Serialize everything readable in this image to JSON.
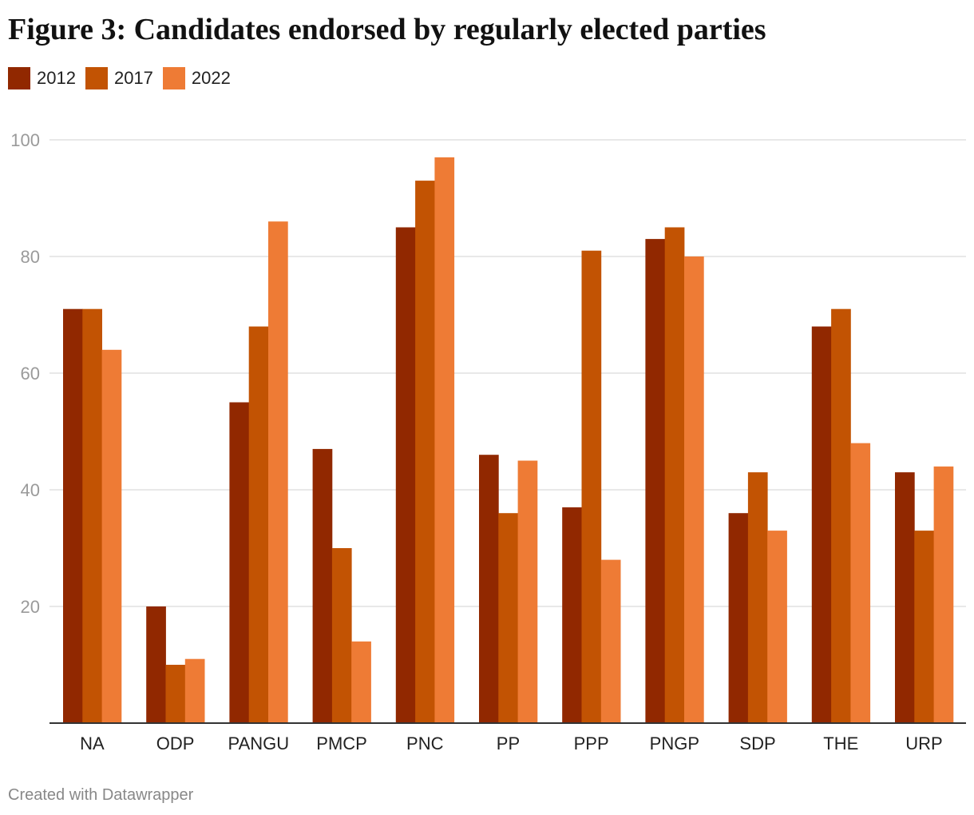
{
  "title": "Figure 3: Candidates endorsed by regularly elected parties",
  "footer": "Created with Datawrapper",
  "colors": {
    "grid": "#e0e0e0",
    "axis": "#333333"
  },
  "chart_data": {
    "type": "bar",
    "title": "Figure 3: Candidates endorsed by regularly elected parties",
    "xlabel": "",
    "ylabel": "",
    "ylim": [
      0,
      100
    ],
    "yticks": [
      20,
      40,
      60,
      80,
      100
    ],
    "grid": true,
    "legend_position": "top-left",
    "categories": [
      "NA",
      "ODP",
      "PANGU",
      "PMCP",
      "PNC",
      "PP",
      "PPP",
      "PNGP",
      "SDP",
      "THE",
      "URP"
    ],
    "series": [
      {
        "name": "2012",
        "color": "#912800",
        "values": [
          71,
          20,
          55,
          47,
          85,
          46,
          37,
          83,
          36,
          68,
          43
        ]
      },
      {
        "name": "2017",
        "color": "#c25303",
        "values": [
          71,
          10,
          68,
          30,
          93,
          36,
          81,
          85,
          43,
          71,
          33
        ]
      },
      {
        "name": "2022",
        "color": "#ee7b35",
        "values": [
          64,
          11,
          86,
          14,
          97,
          45,
          28,
          80,
          33,
          48,
          44
        ]
      }
    ]
  }
}
